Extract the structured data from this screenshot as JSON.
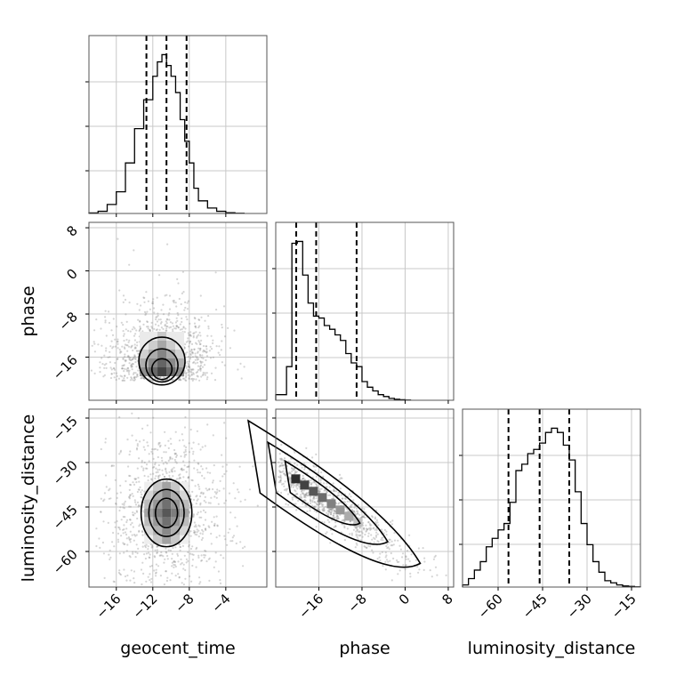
{
  "chart_data": {
    "type": "corner",
    "parameters": [
      "geocent_time",
      "phase",
      "luminosity_distance"
    ],
    "axes": {
      "geocent_time": {
        "range": [
          -19.0,
          0.5
        ],
        "ticks": [
          -16,
          -12,
          -8,
          -4
        ],
        "tick_labels": [
          "−16",
          "−12",
          "−8",
          "−4"
        ]
      },
      "phase": {
        "range": [
          -24.0,
          9.0
        ],
        "ticks": [
          -16,
          -8,
          0,
          8
        ],
        "tick_labels": [
          "−16",
          "−8",
          "0",
          "8"
        ]
      },
      "luminosity_distance": {
        "range": [
          -72.0,
          -12.0
        ],
        "ticks": [
          -60,
          -45,
          -30,
          -15
        ],
        "tick_labels": [
          "−60",
          "−45",
          "−30",
          "−15"
        ]
      }
    },
    "histograms": [
      {
        "parameter": "geocent_time",
        "bin_edges": [
          -19.0,
          -18.0,
          -17.0,
          -16.0,
          -15.0,
          -14.0,
          -13.0,
          -12.0,
          -11.5,
          -11.0,
          -10.5,
          -10.0,
          -9.5,
          -9.0,
          -8.5,
          -8.0,
          -7.5,
          -7.0,
          -6.0,
          -5.0,
          -4.0,
          -3.0,
          -2.0
        ],
        "counts": [
          0.3,
          1.2,
          5,
          12,
          28,
          47,
          63,
          76,
          84,
          88,
          82,
          76,
          67,
          52,
          40,
          28,
          14,
          7,
          3,
          1.2,
          0.4,
          0.1
        ],
        "quantile_lines": [
          -12.7,
          -10.5,
          -8.3
        ]
      },
      {
        "parameter": "phase",
        "bin_edges": [
          -24,
          -22,
          -21,
          -20,
          -19,
          -18,
          -17,
          -16,
          -15,
          -14,
          -13,
          -12,
          -11,
          -10,
          -9,
          -8,
          -7,
          -6,
          -5,
          -4,
          -3,
          -2,
          -1,
          0,
          1
        ],
        "counts": [
          3,
          18,
          84,
          85,
          67,
          52,
          45,
          44,
          40,
          38,
          35,
          32,
          25,
          20,
          18,
          10,
          7,
          5,
          3,
          2,
          1,
          0.5,
          0.3,
          0.1
        ],
        "quantile_lines": [
          -20.2,
          -16.5,
          -9.0
        ]
      },
      {
        "parameter": "luminosity_distance",
        "bin_edges": [
          -72,
          -70,
          -68,
          -66,
          -64,
          -62,
          -60,
          -58,
          -56,
          -54,
          -52,
          -50,
          -48,
          -46,
          -44,
          -42,
          -40,
          -38,
          -36,
          -34,
          -32,
          -30,
          -28,
          -26,
          -24,
          -22,
          -20,
          -18,
          -16,
          -14,
          -12
        ],
        "counts": [
          1,
          4,
          8,
          12,
          19,
          23,
          27,
          30,
          40,
          55,
          58,
          63,
          65,
          68,
          73,
          75,
          73,
          67,
          60,
          45,
          30,
          20,
          12,
          7,
          3,
          2,
          1,
          0.5,
          0.3,
          0.1
        ],
        "quantile_lines": [
          -56.5,
          -46.0,
          -36.0
        ]
      }
    ],
    "joint": [
      {
        "x": "geocent_time",
        "y": "phase",
        "center": [
          -11.0,
          -19.0
        ],
        "spread": [
          2.0,
          3.5
        ],
        "note": "concentrated at low phase"
      },
      {
        "x": "geocent_time",
        "y": "luminosity_distance",
        "center": [
          -10.5,
          -47.0
        ],
        "spread": [
          2.2,
          9.0
        ]
      },
      {
        "x": "phase",
        "y": "luminosity_distance",
        "center": [
          -17.0,
          -40.0
        ],
        "spread": [
          4.0,
          8.0
        ],
        "correlation": "negative"
      }
    ],
    "xlabels": [
      "geocent_time",
      "phase",
      "luminosity_distance"
    ],
    "ylabels": [
      "",
      "phase",
      "luminosity_distance"
    ],
    "grid": true
  }
}
